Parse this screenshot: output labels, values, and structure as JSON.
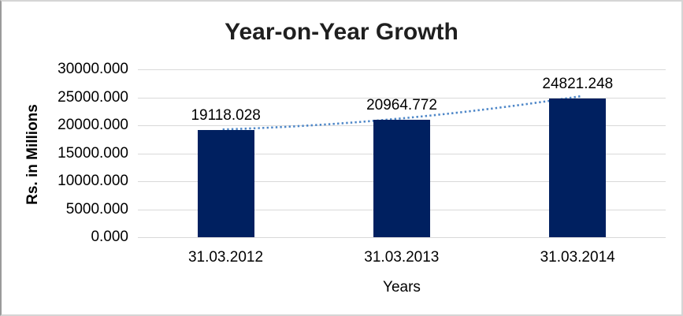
{
  "chart_data": {
    "type": "bar",
    "title": "Year-on-Year Growth",
    "xlabel": "Years",
    "ylabel": "Rs. in Millions",
    "categories": [
      "31.03.2012",
      "31.03.2013",
      "31.03.2014"
    ],
    "values": [
      19118.028,
      20964.772,
      24821.248
    ],
    "data_labels": [
      "19118.028",
      "20964.772",
      "24821.248"
    ],
    "ylim": [
      0,
      30000
    ],
    "ytick_step": 5000,
    "ytick_labels": [
      "30000.000",
      "25000.000",
      "20000.000",
      "15000.000",
      "10000.000",
      "5000.000",
      "0.000"
    ],
    "grid": true,
    "legend_position": "none",
    "bar_color": "#002060",
    "gridline_color": "#d9d9d9",
    "trendline": {
      "style": "dotted",
      "color": "#4e87c8"
    }
  }
}
